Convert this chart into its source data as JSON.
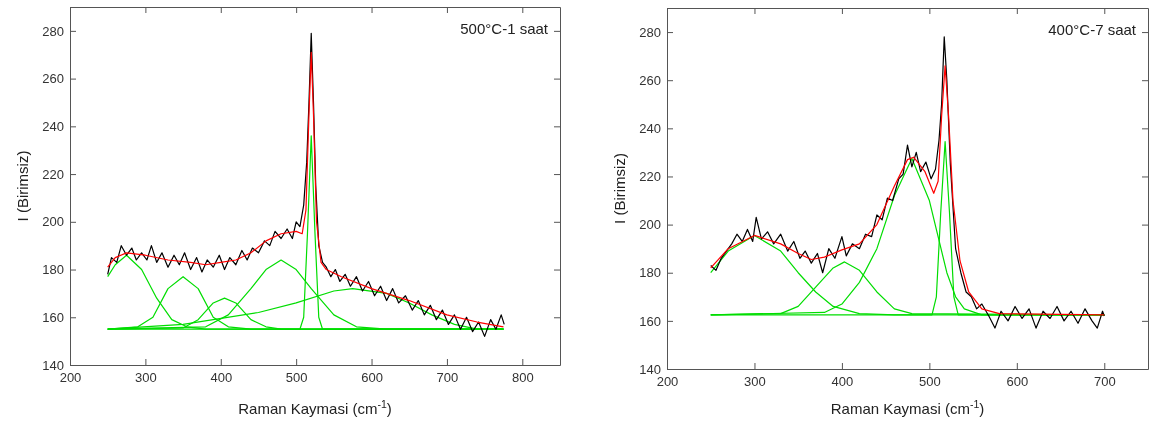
{
  "chart_data": [
    {
      "type": "line",
      "xlabel": "Raman Kaymasi (cm$^{-1}$)",
      "ylabel": "I (Birimsiz)",
      "annotations": [
        "500°C-1 saat"
      ],
      "xlim": [
        200,
        850
      ],
      "ylim": [
        140,
        290
      ],
      "xticks": [
        200,
        300,
        400,
        500,
        600,
        700,
        800
      ],
      "yticks": [
        140,
        160,
        180,
        200,
        220,
        240,
        260,
        280
      ],
      "series": [
        {
          "color": "#00dd00",
          "x": [
            250,
            260,
            275,
            295,
            315,
            335,
            355,
            380,
            775
          ],
          "values": [
            177,
            182,
            186,
            180,
            168,
            159,
            156,
            155,
            155
          ]
        },
        {
          "color": "#00dd00",
          "x": [
            250,
            290,
            310,
            330,
            350,
            370,
            390,
            410,
            440,
            775
          ],
          "values": [
            155,
            156,
            160,
            172,
            177,
            172,
            160,
            156,
            155,
            155
          ]
        },
        {
          "color": "#00dd00",
          "x": [
            250,
            350,
            370,
            390,
            405,
            420,
            440,
            460,
            480,
            775
          ],
          "values": [
            155,
            155.5,
            159,
            166,
            168,
            166,
            159,
            156,
            155,
            155
          ]
        },
        {
          "color": "#00dd00",
          "x": [
            250,
            380,
            410,
            440,
            460,
            480,
            500,
            520,
            550,
            580,
            620,
            775
          ],
          "values": [
            155,
            156,
            161,
            172,
            180,
            184,
            180,
            172,
            161,
            156,
            155,
            155
          ]
        },
        {
          "color": "#00dd00",
          "x": [
            250,
            505,
            510,
            515,
            520,
            525,
            530,
            535,
            775
          ],
          "values": [
            155,
            155,
            160,
            195,
            236,
            195,
            160,
            155,
            155
          ]
        },
        {
          "color": "#00dd00",
          "x": [
            250,
            350,
            450,
            500,
            550,
            575,
            620,
            650,
            680,
            710,
            740,
            775
          ],
          "values": [
            155,
            157,
            162,
            166,
            171,
            172,
            170,
            166,
            161,
            157,
            155,
            155
          ]
        },
        {
          "color": "#000000",
          "x": [
            250,
            255,
            262,
            268,
            275,
            282,
            288,
            295,
            302,
            308,
            315,
            322,
            330,
            338,
            345,
            352,
            360,
            368,
            375,
            382,
            390,
            398,
            405,
            412,
            420,
            428,
            435,
            442,
            450,
            458,
            465,
            472,
            480,
            488,
            495,
            500,
            505,
            510,
            514,
            517,
            520,
            523,
            526,
            530,
            535,
            540,
            546,
            552,
            558,
            565,
            572,
            580,
            588,
            596,
            604,
            612,
            620,
            628,
            636,
            645,
            654,
            662,
            670,
            678,
            686,
            694,
            702,
            710,
            718,
            726,
            734,
            742,
            750,
            758,
            765,
            772,
            776
          ],
          "values": [
            178,
            185,
            183,
            190,
            186,
            189,
            184,
            187,
            184,
            190,
            183,
            187,
            181,
            186,
            182,
            187,
            180,
            185,
            179,
            184,
            181,
            186,
            180,
            185,
            182,
            188,
            184,
            189,
            187,
            192,
            190,
            196,
            193,
            197,
            193,
            200,
            198,
            207,
            225,
            250,
            279,
            250,
            215,
            190,
            183,
            181,
            177,
            180,
            175,
            178,
            173,
            177,
            171,
            175,
            169,
            173,
            167,
            172,
            166,
            169,
            163,
            167,
            161,
            165,
            159,
            163,
            157,
            161,
            155,
            160,
            154,
            158,
            152,
            159,
            155,
            161,
            157
          ]
        },
        {
          "color": "#ff0000",
          "x": [
            250,
            260,
            275,
            300,
            330,
            360,
            380,
            400,
            420,
            440,
            460,
            480,
            500,
            508,
            513,
            517,
            520,
            523,
            527,
            533,
            540,
            560,
            600,
            650,
            700,
            740,
            775
          ],
          "values": [
            181,
            185,
            187,
            186,
            184,
            183,
            182,
            183,
            184,
            187,
            192,
            195,
            196,
            195,
            205,
            245,
            271,
            245,
            200,
            183,
            180,
            177,
            172,
            167,
            161,
            158,
            156
          ]
        }
      ]
    },
    {
      "type": "line",
      "xlabel": "Raman Kaymasi (cm$^{-1}$)",
      "ylabel": "I (Birimsiz)",
      "annotations": [
        "400°C-7 saat"
      ],
      "xlim": [
        200,
        750
      ],
      "ylim": [
        140,
        290
      ],
      "xticks": [
        200,
        300,
        400,
        500,
        600,
        700
      ],
      "yticks": [
        140,
        160,
        180,
        200,
        220,
        240,
        260,
        280
      ],
      "series": [
        {
          "color": "#00dd00",
          "x": [
            250,
            270,
            300,
            330,
            350,
            370,
            390,
            420,
            460,
            700
          ],
          "values": [
            180,
            189,
            195.5,
            189,
            180,
            172,
            166,
            163,
            162.5,
            162.5
          ]
        },
        {
          "color": "#00dd00",
          "x": [
            250,
            330,
            350,
            370,
            390,
            403,
            420,
            440,
            460,
            480,
            700
          ],
          "values": [
            162.5,
            163,
            166,
            174,
            182,
            184.5,
            181,
            172,
            165,
            163,
            162.5
          ]
        },
        {
          "color": "#00dd00",
          "x": [
            250,
            380,
            400,
            420,
            440,
            460,
            480,
            500,
            510,
            520,
            530,
            540,
            560,
            700
          ],
          "values": [
            162.5,
            163.5,
            167,
            176,
            190,
            212,
            227.5,
            210,
            195,
            180,
            170,
            165,
            162.5,
            162.5
          ]
        },
        {
          "color": "#00dd00",
          "x": [
            250,
            503,
            508,
            513,
            518,
            523,
            528,
            533,
            700
          ],
          "values": [
            162.5,
            162.5,
            170,
            205,
            234.5,
            205,
            170,
            162.5,
            162.5
          ]
        },
        {
          "color": "#000000",
          "x": [
            250,
            256,
            262,
            268,
            274,
            280,
            286,
            292,
            298,
            302,
            308,
            315,
            322,
            330,
            338,
            345,
            352,
            358,
            365,
            372,
            378,
            385,
            392,
            400,
            405,
            412,
            420,
            427,
            434,
            440,
            446,
            452,
            458,
            465,
            470,
            475,
            480,
            485,
            490,
            496,
            502,
            507,
            511,
            514,
            517,
            520,
            524,
            530,
            536,
            542,
            548,
            554,
            560,
            568,
            575,
            582,
            590,
            598,
            606,
            614,
            622,
            630,
            638,
            646,
            654,
            662,
            670,
            678,
            686,
            692,
            698,
            700
          ],
          "values": [
            183,
            181,
            186,
            189,
            192,
            196,
            193,
            198,
            193,
            203,
            194,
            197,
            192,
            196,
            189,
            193,
            186,
            189,
            184,
            188,
            180,
            190,
            186,
            195,
            187,
            192,
            190,
            196,
            195,
            204,
            202,
            211,
            210,
            219,
            221,
            233,
            224,
            230,
            222,
            226,
            219,
            223,
            235,
            250,
            278,
            260,
            225,
            190,
            180,
            172,
            170,
            165,
            167,
            162,
            157,
            164,
            160,
            166,
            161,
            165,
            157,
            164,
            161,
            166,
            160,
            164,
            159,
            165,
            160,
            157,
            164,
            162
          ]
        },
        {
          "color": "#ff0000",
          "x": [
            250,
            270,
            300,
            330,
            350,
            365,
            380,
            400,
            420,
            440,
            460,
            475,
            482,
            495,
            505,
            510,
            514,
            518,
            522,
            527,
            535,
            545,
            560,
            580,
            700
          ],
          "values": [
            182,
            190,
            195.5,
            192,
            188,
            185.5,
            186.5,
            189.5,
            192,
            200,
            216,
            227,
            228,
            222,
            213,
            218,
            245,
            266,
            245,
            210,
            185,
            172,
            165,
            163,
            162.5
          ]
        }
      ]
    }
  ]
}
